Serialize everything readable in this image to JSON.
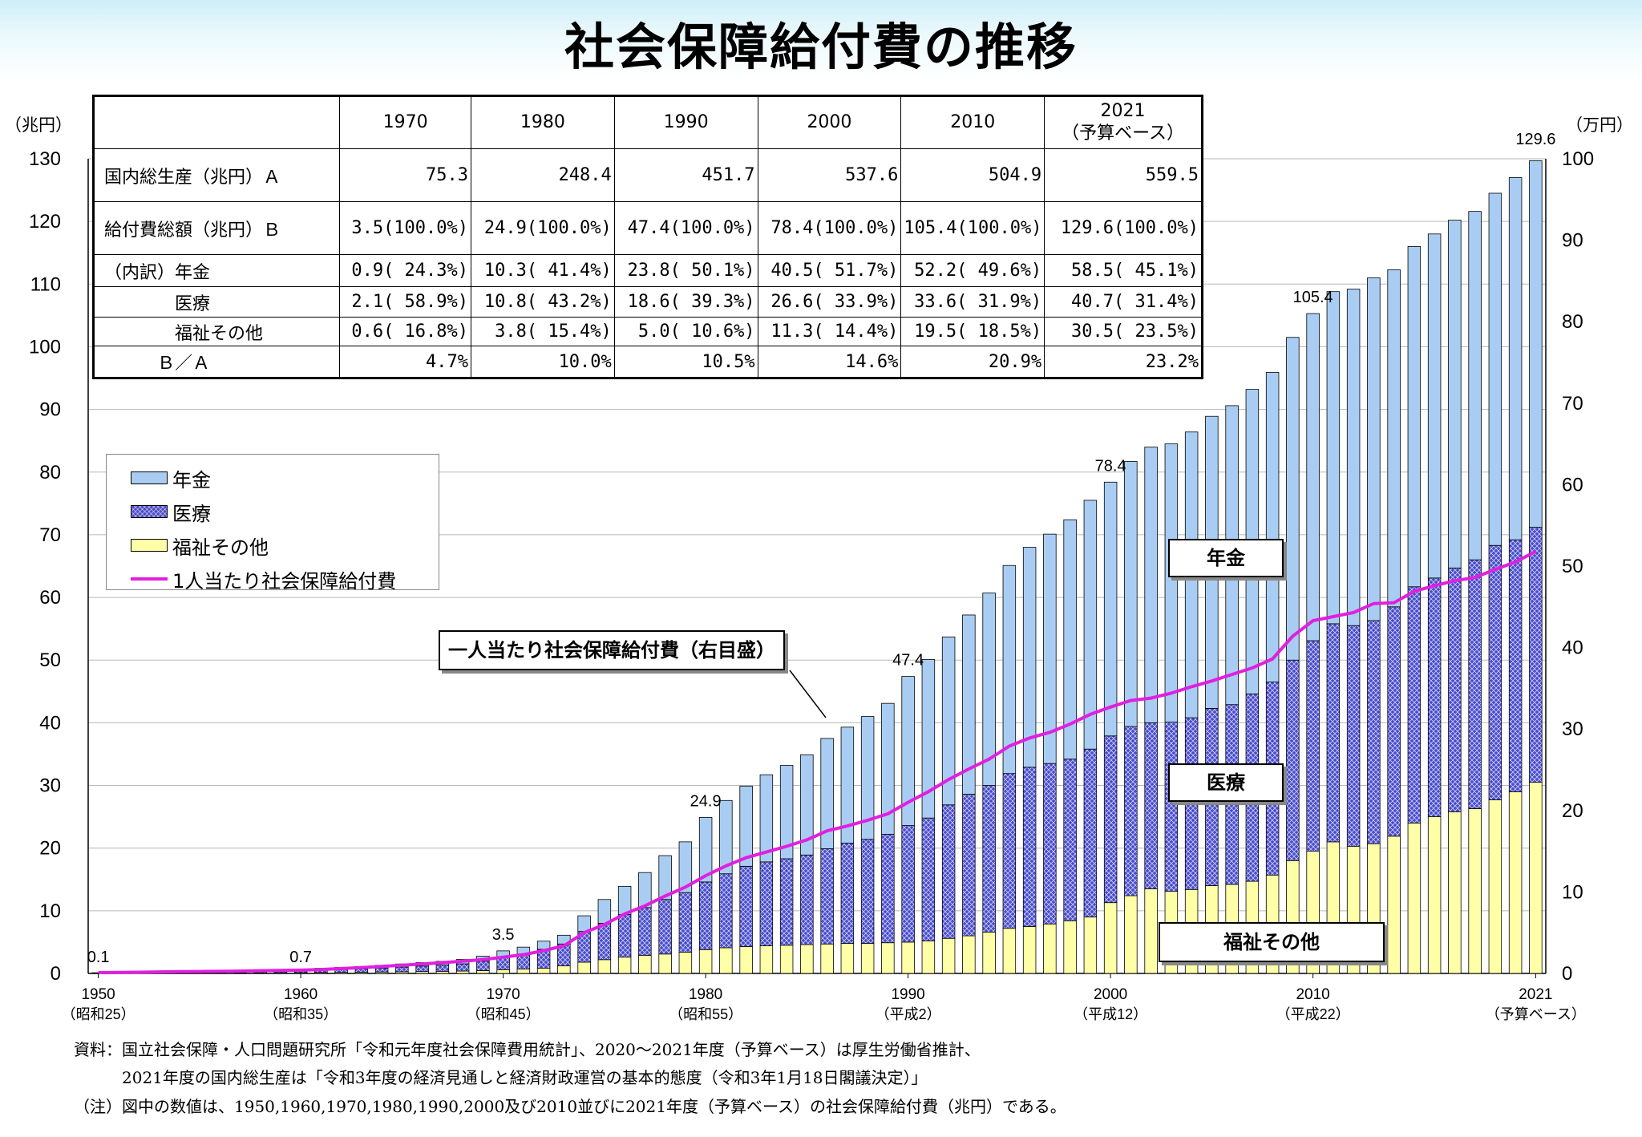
{
  "title": "社会保障給付費の推移",
  "left_unit": "（兆円）",
  "right_unit": "（万円）",
  "table": {
    "headers": [
      "",
      "1970",
      "1980",
      "1990",
      "2000",
      "2010",
      "2021\n（予算ベース）"
    ],
    "header_2021_line1": "2021",
    "header_2021_line2": "（予算ベース）",
    "rows": [
      {
        "label": "国内総生産（兆円）Ａ",
        "cells": [
          "75.3",
          "248.4",
          "451.7",
          "537.6",
          "504.9",
          "559.5"
        ]
      },
      {
        "label": "給付費総額（兆円）Ｂ",
        "cells": [
          "3.5(100.0%)",
          "24.9(100.0%)",
          "47.4(100.0%)",
          "78.4(100.0%)",
          "105.4(100.0%)",
          "129.6(100.0%)"
        ]
      },
      {
        "label": "（内訳）年金",
        "cells": [
          "0.9( 24.3%)",
          "10.3( 41.4%)",
          "23.8( 50.1%)",
          "40.5( 51.7%)",
          "52.2( 49.6%)",
          "58.5( 45.1%)"
        ]
      },
      {
        "label": "　　　　医療",
        "cells": [
          "2.1( 58.9%)",
          "10.8( 43.2%)",
          "18.6( 39.3%)",
          "26.6( 33.9%)",
          "33.6( 31.9%)",
          "40.7( 31.4%)"
        ]
      },
      {
        "label": "　　　　福祉その他",
        "cells": [
          "0.6( 16.8%)",
          "3.8( 15.4%)",
          "5.0( 10.6%)",
          "11.3( 14.4%)",
          "19.5( 18.5%)",
          "30.5( 23.5%)"
        ]
      },
      {
        "label": "　　　Ｂ／Ａ",
        "cells": [
          "4.7%",
          "10.0%",
          "10.5%",
          "14.6%",
          "20.9%",
          "23.2%"
        ]
      }
    ]
  },
  "legend": {
    "pension": "年金",
    "medical": "医療",
    "welfare": "福祉その他",
    "per_capita": "1人当たり社会保障給付費"
  },
  "callouts": {
    "per_capita": "一人当たり社会保障給付費（右目盛）",
    "pension": "年金",
    "medical": "医療",
    "welfare": "福祉その他"
  },
  "notes": {
    "line1": "資料：国立社会保障・人口問題研究所「令和元年度社会保障費用統計」、2020～2021年度（予算ベース）は厚生労働省推計、",
    "line2": "2021年度の国内総生産は「令和3年度の経済見通しと経済財政運営の基本的態度（令和3年1月18日閣議決定）」",
    "line3": "（注）図中の数値は、1950,1960,1970,1980,1990,2000及び2010並びに2021年度（予算ベース）の社会保障給付費（兆円）である。"
  },
  "colors": {
    "pension": "#a9cdf2",
    "medical": "#4a4ac8",
    "welfare": "#ffffa8",
    "per_capita_line": "#e020e0"
  },
  "chart_data": {
    "type": "bar",
    "stacked": true,
    "left_axis": {
      "label": "（兆円）",
      "min": 0,
      "max": 130,
      "ticks": [
        0,
        10,
        20,
        30,
        40,
        50,
        60,
        70,
        80,
        90,
        100,
        110,
        120,
        130
      ]
    },
    "right_axis": {
      "label": "（万円）",
      "min": 0,
      "max": 100,
      "ticks": [
        0,
        10,
        20,
        30,
        40,
        50,
        60,
        70,
        80,
        90,
        100
      ]
    },
    "x_tick_labels": [
      {
        "year": 1950,
        "label": "1950",
        "era": "（昭和25）"
      },
      {
        "year": 1960,
        "label": "1960",
        "era": "（昭和35）"
      },
      {
        "year": 1970,
        "label": "1970",
        "era": "（昭和45）"
      },
      {
        "year": 1980,
        "label": "1980",
        "era": "（昭和55）"
      },
      {
        "year": 1990,
        "label": "1990",
        "era": "（平成2）"
      },
      {
        "year": 2000,
        "label": "2000",
        "era": "（平成12）"
      },
      {
        "year": 2010,
        "label": "2010",
        "era": "（平成22）"
      },
      {
        "year": 2021,
        "label": "2021",
        "era": "（予算ベース）"
      }
    ],
    "annotations": [
      {
        "year": 1950,
        "text": "0.1"
      },
      {
        "year": 1960,
        "text": "0.7"
      },
      {
        "year": 1970,
        "text": "3.5"
      },
      {
        "year": 1980,
        "text": "24.9"
      },
      {
        "year": 1990,
        "text": "47.4"
      },
      {
        "year": 2000,
        "text": "78.4"
      },
      {
        "year": 2010,
        "text": "105.4"
      },
      {
        "year": 2021,
        "text": "129.6"
      }
    ],
    "years": [
      1950,
      1951,
      1952,
      1953,
      1954,
      1955,
      1956,
      1957,
      1958,
      1959,
      1960,
      1961,
      1962,
      1963,
      1964,
      1965,
      1966,
      1967,
      1968,
      1969,
      1970,
      1971,
      1972,
      1973,
      1974,
      1975,
      1976,
      1977,
      1978,
      1979,
      1980,
      1981,
      1982,
      1983,
      1984,
      1985,
      1986,
      1987,
      1988,
      1989,
      1990,
      1991,
      1992,
      1993,
      1994,
      1995,
      1996,
      1997,
      1998,
      1999,
      2000,
      2001,
      2002,
      2003,
      2004,
      2005,
      2006,
      2007,
      2008,
      2009,
      2010,
      2011,
      2012,
      2013,
      2014,
      2015,
      2016,
      2017,
      2018,
      2019,
      2020,
      2021
    ],
    "series": [
      {
        "name": "福祉その他",
        "values": [
          0.05,
          0.06,
          0.07,
          0.08,
          0.08,
          0.09,
          0.1,
          0.1,
          0.11,
          0.12,
          0.13,
          0.15,
          0.17,
          0.2,
          0.23,
          0.26,
          0.3,
          0.34,
          0.38,
          0.45,
          0.6,
          0.7,
          0.85,
          1.2,
          1.8,
          2.2,
          2.6,
          2.9,
          3.1,
          3.4,
          3.8,
          4.1,
          4.3,
          4.4,
          4.5,
          4.6,
          4.7,
          4.8,
          4.8,
          4.9,
          5.0,
          5.2,
          5.6,
          6.0,
          6.6,
          7.2,
          7.5,
          7.9,
          8.4,
          9.0,
          11.3,
          12.4,
          13.5,
          13.1,
          13.4,
          14.0,
          14.2,
          14.7,
          15.7,
          18.0,
          19.5,
          21.0,
          20.3,
          20.7,
          21.9,
          24.0,
          25.0,
          25.8,
          26.3,
          27.7,
          29.0,
          30.5
        ]
      },
      {
        "name": "医療",
        "values": [
          0.04,
          0.05,
          0.06,
          0.08,
          0.09,
          0.1,
          0.11,
          0.13,
          0.15,
          0.17,
          0.3,
          0.37,
          0.45,
          0.53,
          0.63,
          0.75,
          0.88,
          1.0,
          1.15,
          1.5,
          2.1,
          2.4,
          3.0,
          3.5,
          4.9,
          5.8,
          6.8,
          7.6,
          8.7,
          9.5,
          10.8,
          11.8,
          12.8,
          13.4,
          13.8,
          14.3,
          15.2,
          16.0,
          16.6,
          17.3,
          18.6,
          19.6,
          21.3,
          22.6,
          23.4,
          24.7,
          25.4,
          25.6,
          25.8,
          26.8,
          26.6,
          27.0,
          26.5,
          27.0,
          27.4,
          28.3,
          28.7,
          29.9,
          30.8,
          32.0,
          33.6,
          34.8,
          35.2,
          35.6,
          36.6,
          37.7,
          38.1,
          38.9,
          39.7,
          40.6,
          40.2,
          40.7
        ]
      },
      {
        "name": "年金",
        "values": [
          0.01,
          0.01,
          0.01,
          0.02,
          0.02,
          0.02,
          0.02,
          0.03,
          0.03,
          0.03,
          0.27,
          0.3,
          0.34,
          0.38,
          0.44,
          0.5,
          0.55,
          0.6,
          0.7,
          0.8,
          0.9,
          1.1,
          1.3,
          1.4,
          2.5,
          3.8,
          4.5,
          5.6,
          7.0,
          8.1,
          10.3,
          11.7,
          12.8,
          13.9,
          14.9,
          16.0,
          17.6,
          18.5,
          19.6,
          20.9,
          23.8,
          25.3,
          26.8,
          28.6,
          30.7,
          33.2,
          35.1,
          36.6,
          38.2,
          39.7,
          40.5,
          42.3,
          44.0,
          44.4,
          45.6,
          46.6,
          47.7,
          48.6,
          49.4,
          51.5,
          52.2,
          53.0,
          53.7,
          54.7,
          53.8,
          54.3,
          54.9,
          55.5,
          55.6,
          56.2,
          57.8,
          58.5
        ]
      },
      {
        "name": "1人当たり社会保障給付費",
        "axis": "right",
        "values": [
          0.1,
          0.12,
          0.15,
          0.19,
          0.22,
          0.24,
          0.26,
          0.29,
          0.33,
          0.37,
          0.4,
          0.48,
          0.6,
          0.72,
          0.86,
          1.0,
          1.15,
          1.33,
          1.5,
          1.7,
          2.0,
          2.3,
          2.8,
          3.4,
          5.0,
          6.0,
          7.3,
          8.3,
          9.5,
          10.6,
          12.0,
          13.2,
          14.2,
          14.9,
          15.6,
          16.4,
          17.5,
          18.1,
          18.8,
          19.6,
          21.0,
          22.3,
          23.8,
          25.1,
          26.3,
          27.9,
          28.9,
          29.6,
          30.6,
          31.8,
          32.7,
          33.5,
          33.8,
          34.4,
          35.2,
          35.9,
          36.7,
          37.5,
          38.6,
          41.4,
          43.3,
          43.8,
          44.3,
          45.4,
          45.5,
          46.9,
          47.6,
          48.2,
          48.6,
          49.6,
          50.5,
          51.8
        ]
      }
    ]
  }
}
